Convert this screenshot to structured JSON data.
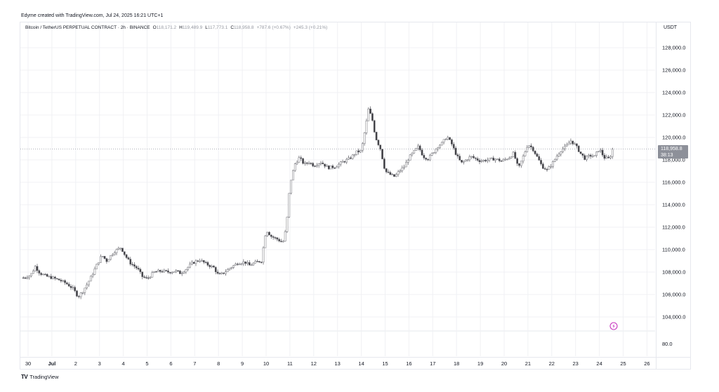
{
  "caption": "Edyme created with TradingView.com, Jul 24, 2025 16:21 UTC+1",
  "legend": {
    "symbol": "Bitcoin / TetherUS PERPETUAL CONTRACT · 2h · BINANCE",
    "o_label": "O",
    "o_value": "118,171.2",
    "h_label": "H",
    "h_value": "119,489.9",
    "l_label": "L",
    "l_value": "117,773.1",
    "c_label": "C",
    "c_value": "118,958.8",
    "change": "+787.6 (+0.67%)",
    "extra": "+245.3 (+0.21%)"
  },
  "currency": "USDT",
  "price_tag": {
    "price": "118,958.8",
    "countdown": "38:13"
  },
  "footer_brand": "TradingView",
  "footer_logo": "TV",
  "colors": {
    "up": "#ffffff",
    "down": "#3a3a3f",
    "wick": "#6e6e74",
    "grid": "#f0f1f4",
    "alert": "#c839c0",
    "tag": "#8d9099"
  },
  "chart_data": {
    "type": "candlestick",
    "symbol": "BTCUSDT.P",
    "interval": "2h",
    "ylim": [
      103000,
      129500
    ],
    "yticks": [
      "128,000.0",
      "126,000.0",
      "124,000.0",
      "122,000.0",
      "120,000.0",
      "118,000.0",
      "116,000.0",
      "114,000.0",
      "112,000.0",
      "110,000.0",
      "108,000.0",
      "106,000.0",
      "104,000.0"
    ],
    "ytick_values": [
      128000,
      126000,
      124000,
      122000,
      120000,
      118000,
      116000,
      114000,
      112000,
      110000,
      108000,
      106000,
      104000
    ],
    "extra_ytick": "80.0",
    "xticks": [
      "30",
      "Jul",
      "2",
      "3",
      "4",
      "5",
      "6",
      "7",
      "8",
      "9",
      "10",
      "11",
      "12",
      "13",
      "14",
      "15",
      "16",
      "17",
      "18",
      "19",
      "20",
      "21",
      "22",
      "23",
      "24",
      "25",
      "26"
    ],
    "xtick_days": [
      0,
      1,
      2,
      3,
      4,
      5,
      6,
      7,
      8,
      9,
      10,
      11,
      12,
      13,
      14,
      15,
      16,
      17,
      18,
      19,
      20,
      21,
      22,
      23,
      24,
      25,
      26
    ],
    "last_price": 118958.8,
    "close_path": [
      [
        -0.2,
        107500
      ],
      [
        0.1,
        107700
      ],
      [
        0.3,
        108500
      ],
      [
        0.5,
        107900
      ],
      [
        0.8,
        107600
      ],
      [
        1.0,
        107500
      ],
      [
        1.3,
        107300
      ],
      [
        1.6,
        107000
      ],
      [
        1.9,
        106500
      ],
      [
        2.1,
        105800
      ],
      [
        2.3,
        106300
      ],
      [
        2.5,
        107000
      ],
      [
        2.7,
        107800
      ],
      [
        2.9,
        108700
      ],
      [
        3.1,
        109500
      ],
      [
        3.3,
        109000
      ],
      [
        3.6,
        109800
      ],
      [
        3.9,
        110200
      ],
      [
        4.1,
        109400
      ],
      [
        4.3,
        108800
      ],
      [
        4.6,
        108300
      ],
      [
        4.8,
        107600
      ],
      [
        5.0,
        107400
      ],
      [
        5.3,
        108000
      ],
      [
        5.6,
        108100
      ],
      [
        5.9,
        108000
      ],
      [
        6.2,
        108100
      ],
      [
        6.4,
        107900
      ],
      [
        6.6,
        108200
      ],
      [
        6.9,
        108800
      ],
      [
        7.2,
        109100
      ],
      [
        7.5,
        108700
      ],
      [
        7.8,
        108400
      ],
      [
        8.0,
        107700
      ],
      [
        8.2,
        107900
      ],
      [
        8.5,
        108400
      ],
      [
        8.8,
        108800
      ],
      [
        9.1,
        108900
      ],
      [
        9.3,
        108600
      ],
      [
        9.6,
        108900
      ],
      [
        9.8,
        109000
      ],
      [
        10.0,
        111800
      ],
      [
        10.2,
        111200
      ],
      [
        10.5,
        110900
      ],
      [
        10.7,
        110600
      ],
      [
        10.85,
        112000
      ],
      [
        11.0,
        115800
      ],
      [
        11.2,
        117600
      ],
      [
        11.4,
        118200
      ],
      [
        11.6,
        117600
      ],
      [
        11.8,
        117800
      ],
      [
        12.0,
        117500
      ],
      [
        12.3,
        117800
      ],
      [
        12.6,
        117300
      ],
      [
        12.9,
        117400
      ],
      [
        13.2,
        117800
      ],
      [
        13.5,
        118100
      ],
      [
        13.8,
        118700
      ],
      [
        14.0,
        118800
      ],
      [
        14.2,
        121200
      ],
      [
        14.3,
        122500
      ],
      [
        14.45,
        121700
      ],
      [
        14.6,
        120000
      ],
      [
        14.8,
        119000
      ],
      [
        15.0,
        117000
      ],
      [
        15.2,
        116700
      ],
      [
        15.4,
        116500
      ],
      [
        15.6,
        117000
      ],
      [
        15.8,
        117400
      ],
      [
        16.0,
        118200
      ],
      [
        16.2,
        118700
      ],
      [
        16.4,
        119200
      ],
      [
        16.6,
        118300
      ],
      [
        16.8,
        118100
      ],
      [
        17.0,
        118600
      ],
      [
        17.2,
        119200
      ],
      [
        17.4,
        119500
      ],
      [
        17.6,
        120100
      ],
      [
        17.8,
        119400
      ],
      [
        18.0,
        118400
      ],
      [
        18.2,
        117700
      ],
      [
        18.4,
        118000
      ],
      [
        18.6,
        118300
      ],
      [
        18.8,
        118100
      ],
      [
        19.0,
        117900
      ],
      [
        19.3,
        118000
      ],
      [
        19.6,
        118100
      ],
      [
        19.9,
        117900
      ],
      [
        20.2,
        118200
      ],
      [
        20.4,
        118600
      ],
      [
        20.6,
        117200
      ],
      [
        20.8,
        118300
      ],
      [
        21.0,
        119400
      ],
      [
        21.2,
        119000
      ],
      [
        21.4,
        118200
      ],
      [
        21.6,
        117400
      ],
      [
        21.8,
        117100
      ],
      [
        22.0,
        117600
      ],
      [
        22.2,
        118300
      ],
      [
        22.4,
        118900
      ],
      [
        22.6,
        119200
      ],
      [
        22.8,
        119700
      ],
      [
        23.0,
        119300
      ],
      [
        23.2,
        118600
      ],
      [
        23.4,
        118100
      ],
      [
        23.6,
        118400
      ],
      [
        23.8,
        118300
      ],
      [
        24.0,
        119000
      ],
      [
        24.2,
        118200
      ],
      [
        24.4,
        118100
      ],
      [
        24.6,
        118958.8
      ]
    ]
  }
}
